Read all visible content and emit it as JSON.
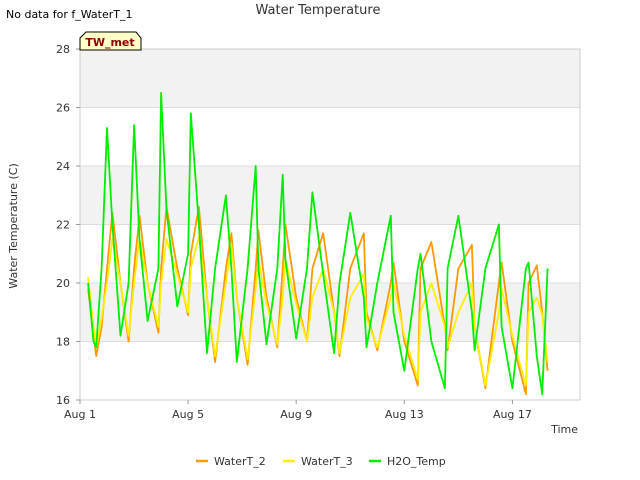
{
  "no_data_note": "No data for f_WaterT_1",
  "badge": "TW_met",
  "chart_data": {
    "type": "line",
    "title": "Water Temperature",
    "xlabel": "Time",
    "ylabel": "Water Temperature (C)",
    "xlim": [
      1,
      19.5
    ],
    "ylim": [
      16,
      28
    ],
    "x_ticks": [
      {
        "value": 1,
        "label": "Aug 1"
      },
      {
        "value": 5,
        "label": "Aug 5"
      },
      {
        "value": 9,
        "label": "Aug 9"
      },
      {
        "value": 13,
        "label": "Aug 13"
      },
      {
        "value": 17,
        "label": "Aug 17"
      }
    ],
    "y_ticks": [
      16,
      18,
      20,
      22,
      24,
      26,
      28
    ],
    "background": "alternating horizontal bands (light gray / white) every 2 units",
    "legend_position": "bottom-center",
    "series": [
      {
        "name": "WaterT_2",
        "color": "#ff9900",
        "x": [
          1.3,
          1.5,
          1.6,
          1.8,
          2.0,
          2.2,
          2.5,
          2.8,
          3.0,
          3.2,
          3.5,
          3.9,
          4.0,
          4.2,
          4.6,
          5.0,
          5.1,
          5.4,
          5.7,
          6.0,
          6.4,
          6.6,
          6.8,
          7.2,
          7.5,
          7.6,
          7.9,
          8.3,
          8.5,
          8.6,
          9.0,
          9.4,
          9.6,
          10.0,
          10.4,
          10.6,
          11.0,
          11.5,
          11.6,
          12.0,
          12.5,
          12.6,
          13.0,
          13.5,
          13.6,
          14.0,
          14.5,
          14.6,
          15.0,
          15.5,
          15.6,
          16.0,
          16.5,
          16.6,
          17.0,
          17.5,
          17.6,
          17.9,
          18.1,
          18.3
        ],
        "y": [
          19.8,
          18.2,
          17.5,
          18.5,
          20.5,
          22.4,
          20.0,
          18.0,
          20.5,
          22.3,
          20.0,
          18.3,
          20.5,
          22.6,
          20.5,
          18.9,
          21.0,
          22.6,
          19.5,
          17.3,
          20.5,
          21.7,
          19.5,
          17.2,
          20.5,
          21.8,
          19.5,
          17.8,
          20.5,
          22.0,
          19.5,
          18.0,
          20.5,
          21.7,
          19.0,
          17.5,
          20.5,
          21.7,
          19.0,
          17.7,
          20.0,
          20.7,
          18.0,
          16.5,
          20.5,
          21.4,
          18.5,
          17.7,
          20.5,
          21.3,
          18.5,
          16.4,
          20.0,
          20.7,
          18.0,
          16.2,
          20.0,
          20.6,
          19.0,
          17.0
        ]
      },
      {
        "name": "WaterT_3",
        "color": "#ffee00",
        "x": [
          1.3,
          1.5,
          1.6,
          1.8,
          2.0,
          2.2,
          2.5,
          2.8,
          3.0,
          3.2,
          3.5,
          3.9,
          4.0,
          4.2,
          4.6,
          5.0,
          5.1,
          5.4,
          5.7,
          6.0,
          6.4,
          6.6,
          6.8,
          7.2,
          7.5,
          7.6,
          7.9,
          8.3,
          8.5,
          8.6,
          9.0,
          9.4,
          9.6,
          10.0,
          10.4,
          10.6,
          11.0,
          11.5,
          11.6,
          12.0,
          12.5,
          12.6,
          13.0,
          13.5,
          13.6,
          14.0,
          14.5,
          14.6,
          15.0,
          15.5,
          15.6,
          16.0,
          16.5,
          16.6,
          17.0,
          17.5,
          17.6,
          17.9,
          18.1,
          18.3
        ],
        "y": [
          20.2,
          18.5,
          17.8,
          18.8,
          20.0,
          21.5,
          20.0,
          18.2,
          20.0,
          21.5,
          20.0,
          18.5,
          20.0,
          21.5,
          20.3,
          19.0,
          20.5,
          21.6,
          19.5,
          17.5,
          20.0,
          21.3,
          19.5,
          17.4,
          19.8,
          20.8,
          19.3,
          17.9,
          19.5,
          20.8,
          19.3,
          18.0,
          19.5,
          20.5,
          19.0,
          17.6,
          19.5,
          20.3,
          18.8,
          17.8,
          19.5,
          20.0,
          18.2,
          16.7,
          19.0,
          20.0,
          18.5,
          17.8,
          19.0,
          20.0,
          18.5,
          16.5,
          19.0,
          19.8,
          18.2,
          16.5,
          19.0,
          19.5,
          18.9,
          17.3
        ]
      },
      {
        "name": "H2O_Temp",
        "color": "#00ee00",
        "x": [
          1.3,
          1.5,
          1.6,
          1.8,
          2.0,
          2.2,
          2.5,
          2.8,
          3.0,
          3.2,
          3.5,
          3.9,
          4.0,
          4.2,
          4.6,
          5.0,
          5.1,
          5.4,
          5.7,
          6.0,
          6.4,
          6.6,
          6.8,
          7.2,
          7.5,
          7.6,
          7.9,
          8.3,
          8.5,
          8.6,
          9.0,
          9.4,
          9.6,
          10.0,
          10.4,
          10.6,
          11.0,
          11.5,
          11.6,
          12.0,
          12.5,
          12.6,
          13.0,
          13.5,
          13.6,
          14.0,
          14.5,
          14.6,
          15.0,
          15.5,
          15.6,
          16.0,
          16.5,
          16.6,
          17.0,
          17.5,
          17.6,
          17.9,
          18.1,
          18.3
        ],
        "y": [
          20.0,
          18.0,
          17.8,
          20.5,
          25.3,
          22.0,
          18.2,
          20.0,
          25.4,
          21.5,
          18.7,
          20.5,
          26.5,
          22.5,
          19.2,
          21.0,
          25.8,
          22.0,
          17.6,
          20.5,
          23.0,
          20.5,
          17.3,
          20.5,
          24.0,
          20.5,
          17.9,
          20.5,
          23.7,
          20.8,
          18.1,
          20.5,
          23.1,
          20.3,
          17.6,
          20.0,
          22.4,
          19.5,
          17.8,
          20.0,
          22.3,
          19.0,
          17.0,
          20.5,
          21.0,
          18.0,
          16.4,
          20.5,
          22.3,
          19.0,
          17.7,
          20.5,
          22.0,
          18.5,
          16.4,
          20.5,
          20.7,
          17.5,
          16.2,
          20.5
        ]
      }
    ]
  }
}
